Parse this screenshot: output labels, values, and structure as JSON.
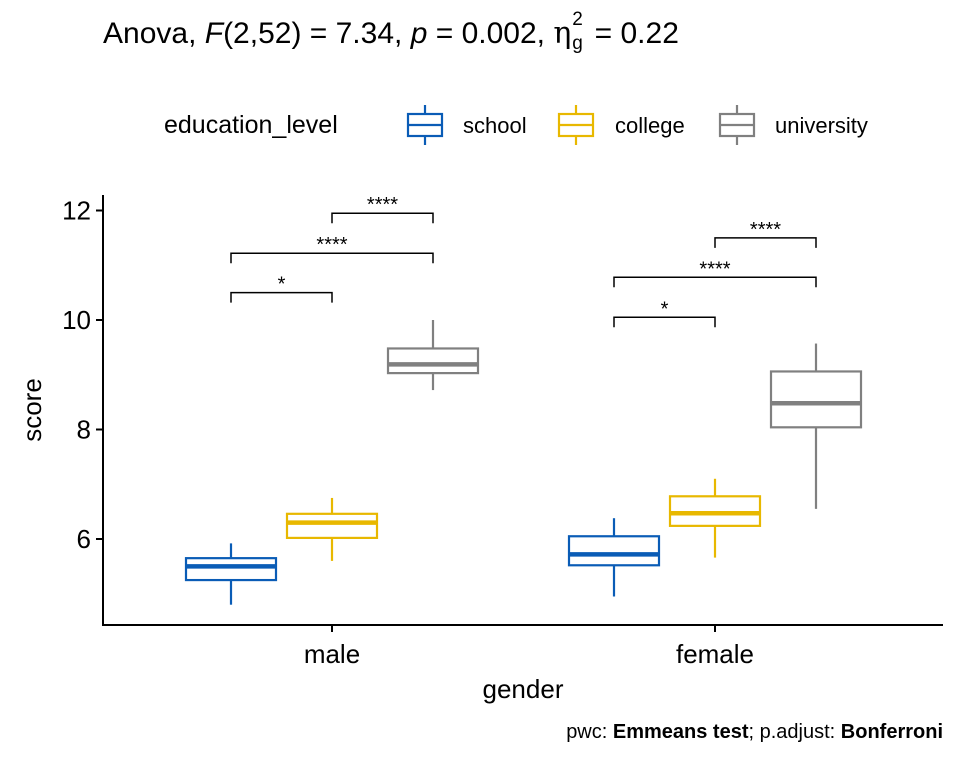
{
  "title": {
    "prefix": "Anova, ",
    "f": "F",
    "df": "(2,52)",
    "f_value": " = 7.34, ",
    "p": "p",
    "p_value": " = 0.002, ",
    "eta": "η",
    "sup": "2",
    "sub": "g",
    "effect": " = 0.22"
  },
  "caption": {
    "pwc_label": "pwc: ",
    "pwc_method": "Emmeans test",
    "adjust_label": "; p.adjust: ",
    "adjust_method": "Bonferroni"
  },
  "chart_data": {
    "type": "boxplot",
    "xlabel": "gender",
    "ylabel": "score",
    "categories": [
      "male",
      "female"
    ],
    "yticks": [
      6,
      8,
      10,
      12
    ],
    "ylim": [
      4.4,
      12.3
    ],
    "legend": {
      "title": "education_level",
      "placement": "top"
    },
    "grid": false,
    "series": [
      {
        "name": "school",
        "color": "#0a5cb6",
        "boxes": [
          {
            "lower": 4.8,
            "q1": 5.25,
            "median": 5.5,
            "q3": 5.65,
            "upper": 5.92
          },
          {
            "lower": 4.95,
            "q1": 5.52,
            "median": 5.72,
            "q3": 6.05,
            "upper": 6.38
          }
        ]
      },
      {
        "name": "college",
        "color": "#e8b800",
        "boxes": [
          {
            "lower": 5.6,
            "q1": 6.02,
            "median": 6.3,
            "q3": 6.46,
            "upper": 6.75
          },
          {
            "lower": 5.66,
            "q1": 6.24,
            "median": 6.47,
            "q3": 6.78,
            "upper": 7.1
          }
        ]
      },
      {
        "name": "university",
        "color": "#808080",
        "boxes": [
          {
            "lower": 8.72,
            "q1": 9.03,
            "median": 9.19,
            "q3": 9.48,
            "upper": 10.0
          },
          {
            "lower": 6.55,
            "q1": 8.04,
            "median": 8.48,
            "q3": 9.06,
            "upper": 9.57
          }
        ]
      }
    ],
    "brackets": [
      {
        "category": "male",
        "from": "school",
        "to": "college",
        "y": 10.5,
        "label": "*"
      },
      {
        "category": "male",
        "from": "school",
        "to": "university",
        "y": 11.22,
        "label": "****"
      },
      {
        "category": "male",
        "from": "college",
        "to": "university",
        "y": 11.95,
        "label": "****"
      },
      {
        "category": "female",
        "from": "school",
        "to": "college",
        "y": 10.05,
        "label": "*"
      },
      {
        "category": "female",
        "from": "school",
        "to": "university",
        "y": 10.78,
        "label": "****"
      },
      {
        "category": "female",
        "from": "college",
        "to": "university",
        "y": 11.5,
        "label": "****"
      }
    ]
  }
}
